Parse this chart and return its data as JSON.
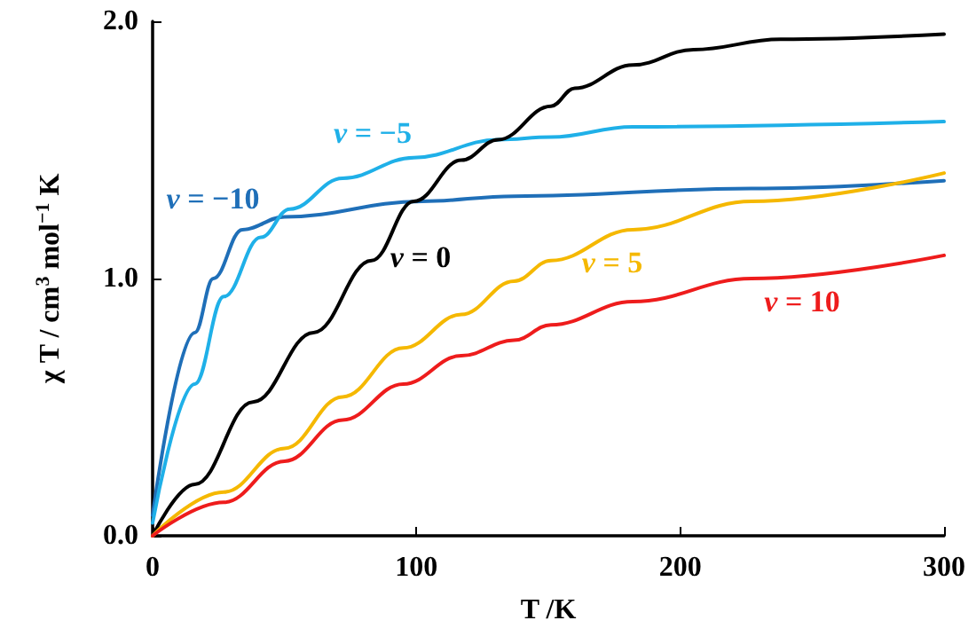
{
  "chart_data": {
    "type": "line",
    "xlabel": "T /K",
    "ylabel": "χ T / cm$^{3}$ mol$^{−1}$ K",
    "xlim": [
      0,
      300
    ],
    "xticks": [
      0,
      100,
      200,
      300
    ],
    "ylim": [
      0,
      2
    ],
    "yticks": [
      {
        "value": 0,
        "label": "0.0"
      },
      {
        "value": 1,
        "label": "1.0"
      },
      {
        "value": 2,
        "label": "2.0"
      }
    ],
    "grid": false,
    "marker": "none",
    "line_style": "solid",
    "series": [
      {
        "name": "v = −10",
        "color": "#1f6fb8",
        "x": [
          0,
          16,
          23,
          34,
          50,
          102,
          137,
          227,
          300
        ],
        "values": [
          0.08,
          0.79,
          1.0,
          1.19,
          1.24,
          1.3,
          1.32,
          1.35,
          1.38
        ]
      },
      {
        "name": "v = −5",
        "color": "#1fb0e8",
        "x": [
          0,
          16,
          27,
          41,
          52,
          72,
          99,
          131,
          151,
          182,
          300
        ],
        "values": [
          0.05,
          0.59,
          0.93,
          1.16,
          1.27,
          1.39,
          1.47,
          1.54,
          1.55,
          1.59,
          1.61
        ]
      },
      {
        "name": "v = 0",
        "color": "#000000",
        "x": [
          0,
          16,
          38,
          61,
          83,
          99,
          117,
          131,
          151,
          160,
          182,
          205,
          238,
          300
        ],
        "values": [
          0,
          0.2,
          0.52,
          0.79,
          1.07,
          1.3,
          1.46,
          1.54,
          1.67,
          1.74,
          1.83,
          1.89,
          1.93,
          1.95
        ]
      },
      {
        "name": "v = 5",
        "color": "#f5b800",
        "x": [
          0,
          27,
          50,
          72,
          95,
          117,
          137,
          151,
          182,
          227,
          300
        ],
        "values": [
          0,
          0.17,
          0.34,
          0.54,
          0.73,
          0.86,
          0.99,
          1.07,
          1.19,
          1.3,
          1.41
        ]
      },
      {
        "name": "v = 10",
        "color": "#ee1c1c",
        "x": [
          0,
          27,
          50,
          72,
          95,
          117,
          137,
          151,
          182,
          227,
          300
        ],
        "values": [
          0,
          0.13,
          0.29,
          0.45,
          0.59,
          0.7,
          0.76,
          0.82,
          0.91,
          1.0,
          1.09
        ]
      }
    ]
  }
}
